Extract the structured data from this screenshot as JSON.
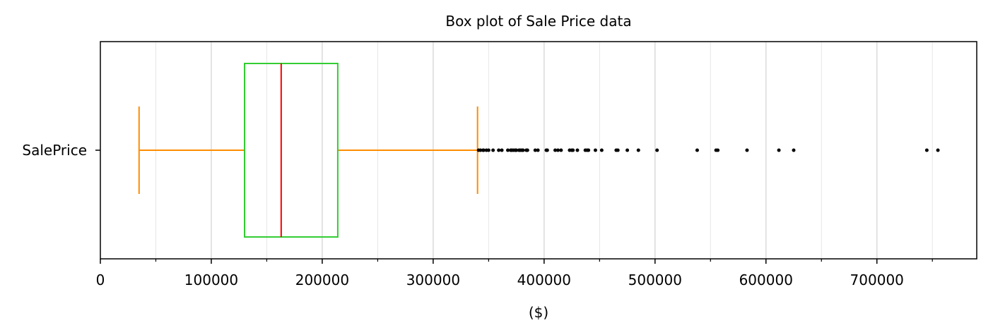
{
  "chart_data": {
    "type": "boxplot",
    "title": "Box plot of Sale Price data",
    "xlabel": "($)",
    "ylabel": "",
    "orientation": "horizontal",
    "xlim": [
      0,
      790000
    ],
    "x_major_ticks": [
      0,
      100000,
      200000,
      300000,
      400000,
      500000,
      600000,
      700000
    ],
    "x_major_tick_labels": [
      "0",
      "100000",
      "200000",
      "300000",
      "400000",
      "500000",
      "600000",
      "700000"
    ],
    "x_minor_ticks": [
      50000,
      150000,
      250000,
      350000,
      450000,
      550000,
      650000,
      750000
    ],
    "grid": "vertical",
    "categories": [
      "SalePrice"
    ],
    "box": {
      "whisker_low": 34900,
      "q1": 129975,
      "median": 163000,
      "q3": 214000,
      "whisker_high": 340000
    },
    "outliers": [
      341000,
      342643,
      345000,
      345474,
      348000,
      350000,
      354000,
      359100,
      361919,
      367294,
      369900,
      370878,
      372402,
      374000,
      375000,
      377426,
      378500,
      380000,
      381000,
      383970,
      385000,
      392000,
      394432,
      402000,
      402861,
      410000,
      412500,
      415298,
      423000,
      424870,
      426000,
      430000,
      437154,
      438780,
      440000,
      446261,
      451950,
      465000,
      466500,
      475000,
      485000,
      501837,
      538000,
      555000,
      556581,
      582933,
      611657,
      625000,
      745000,
      755000
    ],
    "colors": {
      "box": "#32cd32",
      "median": "#ff0000",
      "whisker": "#ff8c00",
      "outlier": "#000000",
      "grid": "#dcdcdc"
    }
  }
}
